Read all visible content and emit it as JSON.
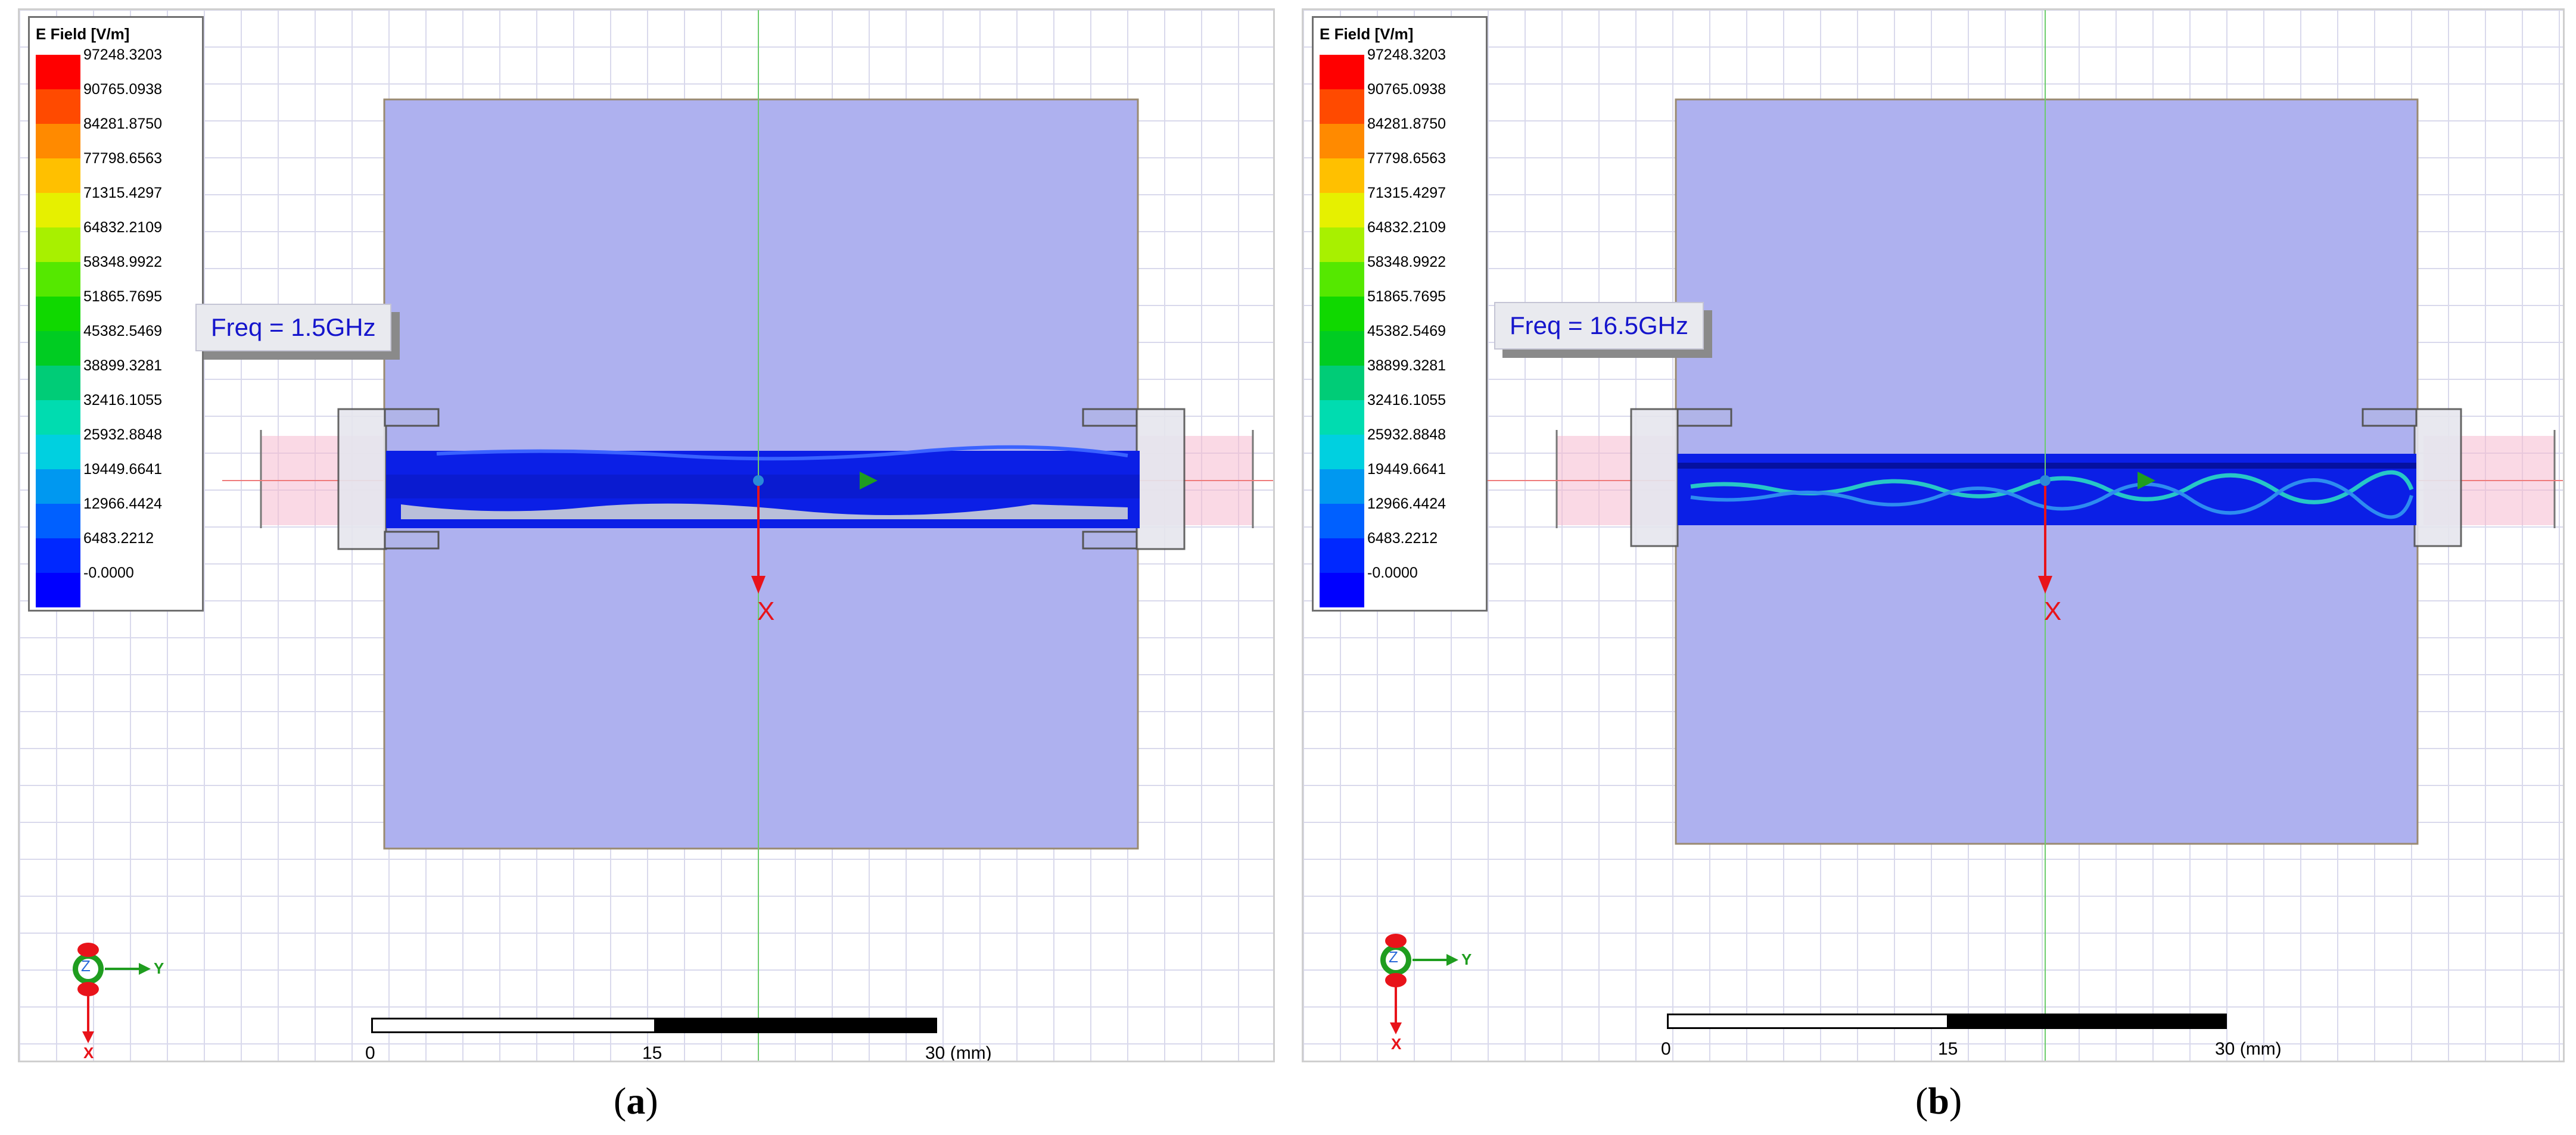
{
  "legend": {
    "title": "E Field [V/m]",
    "values": [
      "97248.3203",
      "90765.0938",
      "84281.8750",
      "77798.6563",
      "71315.4297",
      "64832.2109",
      "58348.9922",
      "51865.7695",
      "45382.5469",
      "38899.3281",
      "32416.1055",
      "25932.8848",
      "19449.6641",
      "12966.4424",
      "6483.2212",
      "-0.0000"
    ],
    "colors": [
      "#ff0000",
      "#ff4a00",
      "#ff8a00",
      "#ffc000",
      "#e6f000",
      "#a8f000",
      "#55e800",
      "#10d800",
      "#00cc22",
      "#00cc77",
      "#00dcb0",
      "#00d0e0",
      "#0098f0",
      "#0060ff",
      "#0028ff",
      "#0000ff"
    ]
  },
  "panels": [
    {
      "freq_label": "Freq = 1.5GHz",
      "caption_letter": "a"
    },
    {
      "freq_label": "Freq = 16.5GHz",
      "caption_letter": "b"
    }
  ],
  "axis_labels": {
    "x_big": "X",
    "z": "Z",
    "y": "Y",
    "x_small": "X"
  },
  "scale": {
    "start": "0",
    "mid": "15",
    "end": "30 (mm)"
  },
  "colors": {
    "substrate": "#aeb1ef",
    "grid": "#d9d9ec",
    "conductor": "#0b1fe6",
    "port": "#f6b9d0",
    "axis_red": "#e8131a",
    "axis_green": "#1f9d1f"
  }
}
